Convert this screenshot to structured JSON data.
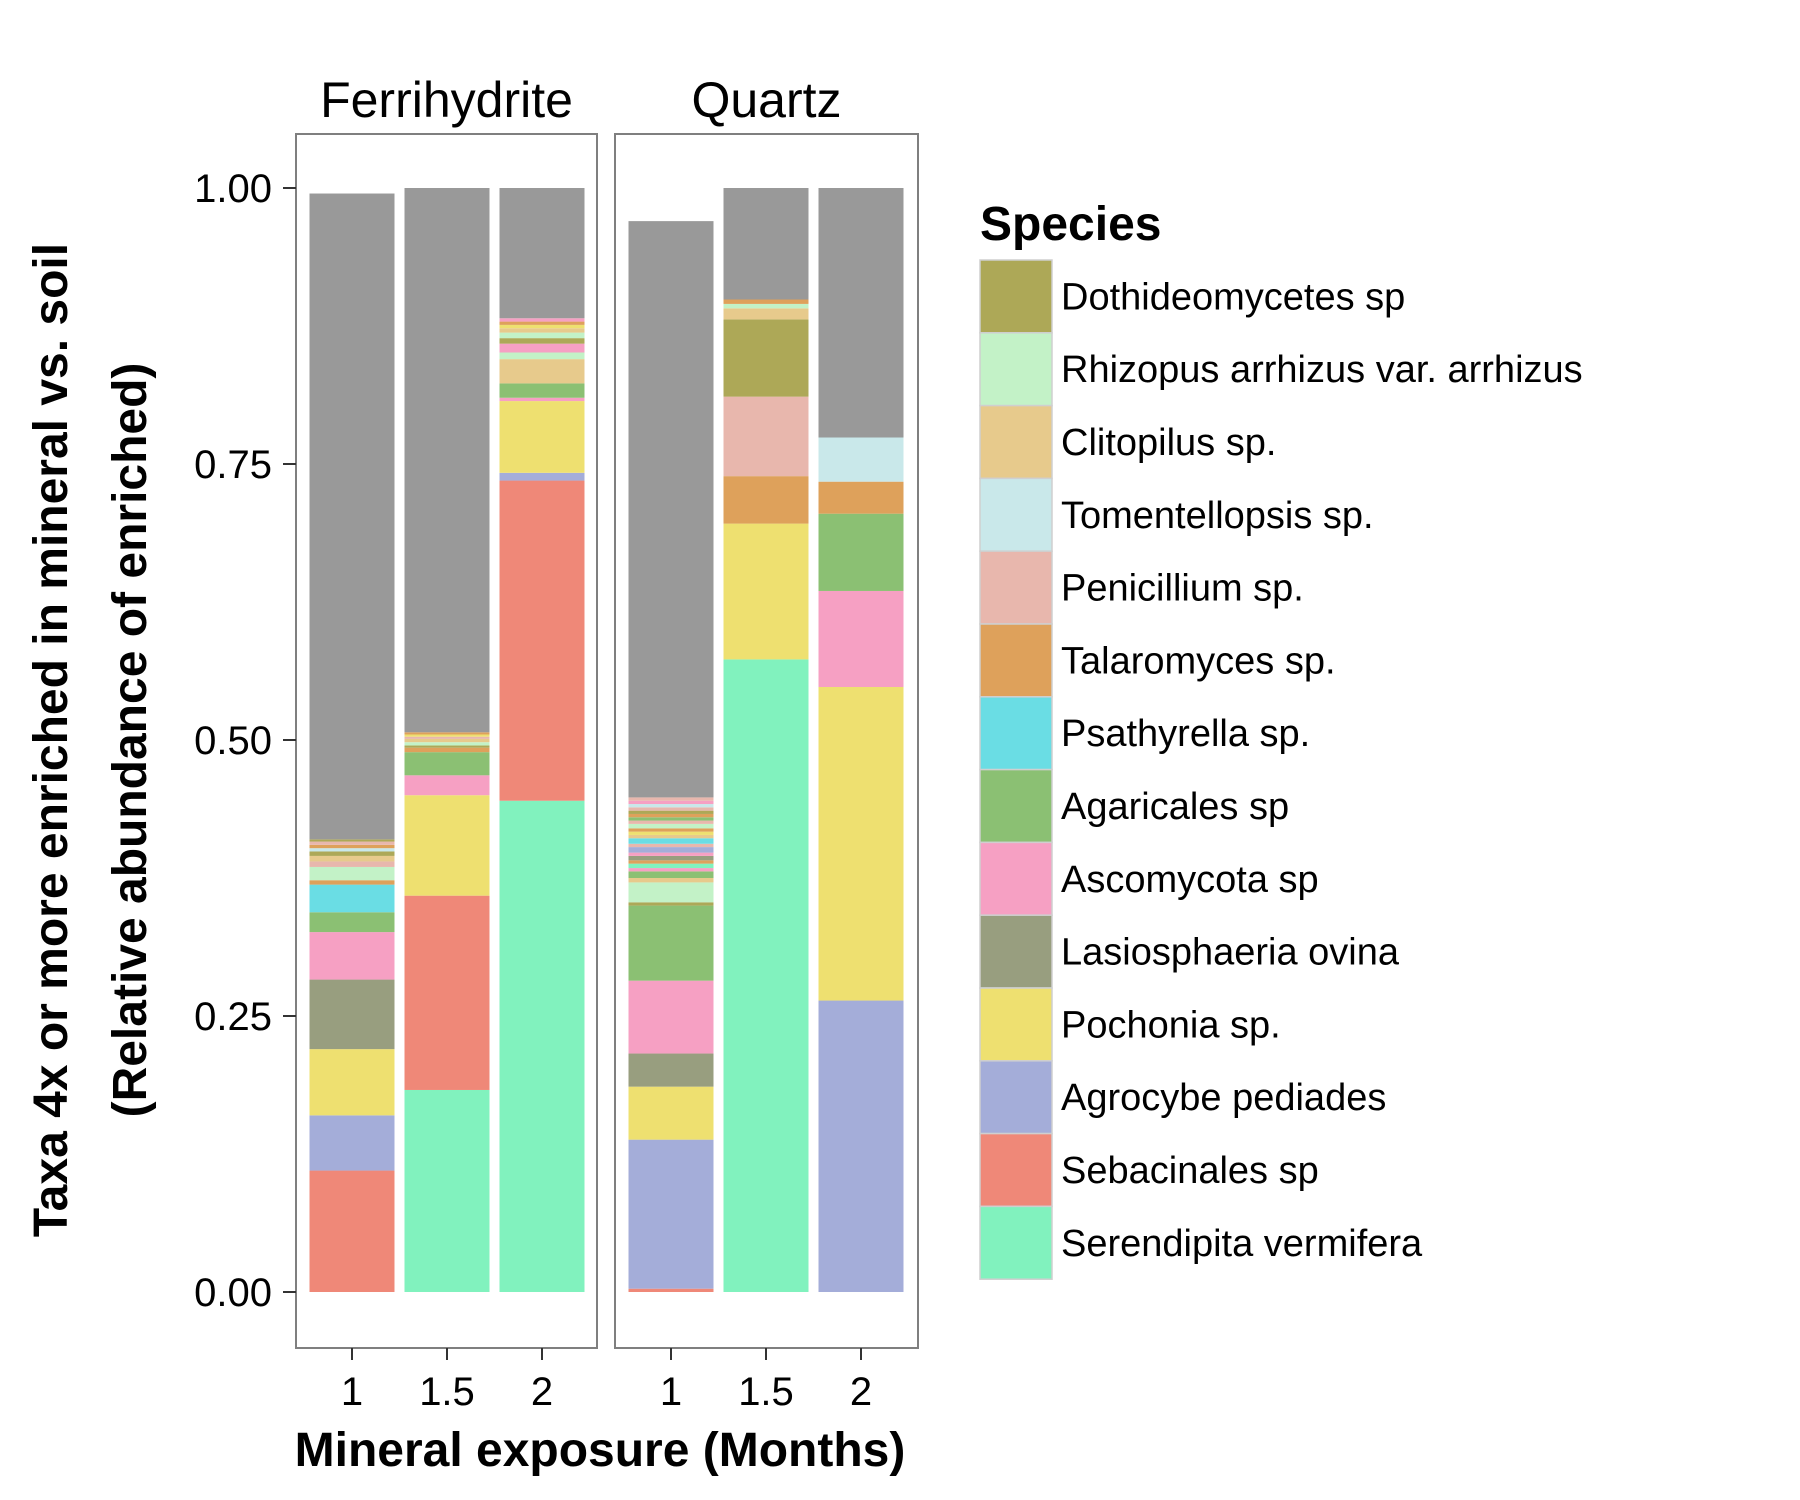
{
  "chart_data": {
    "type": "bar",
    "stacked": true,
    "ylabel_line1": "Taxa 4x or more enriched in mineral vs. soil",
    "ylabel_line2": "(Relative abundance of enriched)",
    "xlabel": "Mineral exposure (Months)",
    "ylim": [
      0,
      1.05
    ],
    "yticks": [
      "0.00",
      "0.25",
      "0.50",
      "0.75",
      "1.00"
    ],
    "ytick_values": [
      0,
      0.25,
      0.5,
      0.75,
      1.0
    ],
    "categories": [
      "1",
      "1.5",
      "2"
    ],
    "legend": {
      "title": "Species",
      "position": "right",
      "items": [
        {
          "name": "Dothideomycetes sp",
          "color": "#ADA857"
        },
        {
          "name": "Rhizopus arrhizus var. arrhizus",
          "color": "#C3F2C7"
        },
        {
          "name": "Clitopilus sp.",
          "color": "#E7CA8C"
        },
        {
          "name": "Tomentellopsis sp.",
          "color": "#C9E8EA"
        },
        {
          "name": "Penicillium sp.",
          "color": "#E8B7AD"
        },
        {
          "name": "Talaromyces sp.",
          "color": "#DEA15B"
        },
        {
          "name": "Psathyrella sp.",
          "color": "#6ADDE4"
        },
        {
          "name": "Agaricales sp",
          "color": "#8BC073"
        },
        {
          "name": "Ascomycota sp",
          "color": "#F6A0C3"
        },
        {
          "name": "Lasiosphaeria ovina",
          "color": "#989E7F"
        },
        {
          "name": "Pochonia sp.",
          "color": "#EEE070"
        },
        {
          "name": "Agrocybe pediades",
          "color": "#A4ADD9"
        },
        {
          "name": "Sebacinales sp",
          "color": "#EF8878"
        },
        {
          "name": "Serendipita vermifera",
          "color": "#81F2BE"
        }
      ]
    },
    "other_color": "#999999",
    "panels": [
      {
        "title": "Ferrihydrite",
        "bars": [
          {
            "x": "1",
            "segments": [
              {
                "species": "Sebacinales sp",
                "value": 0.11
              },
              {
                "species": "Agrocybe pediades",
                "value": 0.05
              },
              {
                "species": "Pochonia sp.",
                "value": 0.06
              },
              {
                "species": "Lasiosphaeria ovina",
                "value": 0.063
              },
              {
                "species": "Ascomycota sp",
                "value": 0.043
              },
              {
                "species": "Agaricales sp",
                "value": 0.018
              },
              {
                "species": "Psathyrella sp.",
                "value": 0.025
              },
              {
                "species": "Talaromyces sp.",
                "value": 0.004
              },
              {
                "species": "Rhizopus arrhizus var. arrhizus",
                "value": 0.012
              },
              {
                "species": "Penicillium sp.",
                "value": 0.005
              },
              {
                "species": "Clitopilus sp.",
                "value": 0.005
              },
              {
                "species": "Dothideomycetes sp",
                "value": 0.004
              },
              {
                "species": "Tomentellopsis sp.",
                "value": 0.003
              },
              {
                "species": "Talaromyces sp.",
                "value": 0.003
              },
              {
                "species": "Penicillium sp.",
                "value": 0.003
              },
              {
                "species": "Dothideomycetes sp",
                "value": 0.002
              },
              {
                "species": "other",
                "value": 0.585
              }
            ]
          },
          {
            "x": "1.5",
            "segments": [
              {
                "species": "Serendipita vermifera",
                "value": 0.183
              },
              {
                "species": "Sebacinales sp",
                "value": 0.176
              },
              {
                "species": "Pochonia sp.",
                "value": 0.091
              },
              {
                "species": "Ascomycota sp",
                "value": 0.018
              },
              {
                "species": "Agaricales sp",
                "value": 0.021
              },
              {
                "species": "Talaromyces sp.",
                "value": 0.004
              },
              {
                "species": "Dothideomycetes sp",
                "value": 0.002
              },
              {
                "species": "Rhizopus arrhizus var. arrhizus",
                "value": 0.003
              },
              {
                "species": "Clitopilus sp.",
                "value": 0.003
              },
              {
                "species": "Penicillium sp.",
                "value": 0.002
              },
              {
                "species": "Pochonia sp.",
                "value": 0.002
              },
              {
                "species": "Talaromyces sp.",
                "value": 0.002
              },
              {
                "species": "other",
                "value": 0.493
              }
            ]
          },
          {
            "x": "2",
            "segments": [
              {
                "species": "Serendipita vermifera",
                "value": 0.445
              },
              {
                "species": "Sebacinales sp",
                "value": 0.29
              },
              {
                "species": "Agrocybe pediades",
                "value": 0.007
              },
              {
                "species": "Pochonia sp.",
                "value": 0.065
              },
              {
                "species": "Ascomycota sp",
                "value": 0.003
              },
              {
                "species": "Agaricales sp",
                "value": 0.013
              },
              {
                "species": "Clitopilus sp.",
                "value": 0.022
              },
              {
                "species": "Rhizopus arrhizus var. arrhizus",
                "value": 0.006
              },
              {
                "species": "Ascomycota sp",
                "value": 0.008
              },
              {
                "species": "Dothideomycetes sp",
                "value": 0.005
              },
              {
                "species": "Rhizopus arrhizus var. arrhizus",
                "value": 0.005
              },
              {
                "species": "Clitopilus sp.",
                "value": 0.004
              },
              {
                "species": "Pochonia sp.",
                "value": 0.003
              },
              {
                "species": "Talaromyces sp.",
                "value": 0.003
              },
              {
                "species": "Ascomycota sp",
                "value": 0.003
              },
              {
                "species": "other",
                "value": 0.118
              }
            ]
          }
        ]
      },
      {
        "title": "Quartz",
        "bars": [
          {
            "x": "1",
            "segments": [
              {
                "species": "Sebacinales sp",
                "value": 0.003
              },
              {
                "species": "Agrocybe pediades",
                "value": 0.135
              },
              {
                "species": "Pochonia sp.",
                "value": 0.048
              },
              {
                "species": "Lasiosphaeria ovina",
                "value": 0.03
              },
              {
                "species": "Ascomycota sp",
                "value": 0.066
              },
              {
                "species": "Agaricales sp",
                "value": 0.068
              },
              {
                "species": "Dothideomycetes sp",
                "value": 0.003
              },
              {
                "species": "Rhizopus arrhizus var. arrhizus",
                "value": 0.018
              },
              {
                "species": "Clitopilus sp.",
                "value": 0.004
              },
              {
                "species": "Agaricales sp",
                "value": 0.006
              },
              {
                "species": "Ascomycota sp",
                "value": 0.003
              },
              {
                "species": "Serendipita vermifera",
                "value": 0.004
              },
              {
                "species": "Talaromyces sp.",
                "value": 0.003
              },
              {
                "species": "Lasiosphaeria ovina",
                "value": 0.004
              },
              {
                "species": "Ascomycota sp",
                "value": 0.003
              },
              {
                "species": "Agrocybe pediades",
                "value": 0.005
              },
              {
                "species": "Penicillium sp.",
                "value": 0.003
              },
              {
                "species": "Psathyrella sp.",
                "value": 0.005
              },
              {
                "species": "Clitopilus sp.",
                "value": 0.003
              },
              {
                "species": "Pochonia sp.",
                "value": 0.003
              },
              {
                "species": "Talaromyces sp.",
                "value": 0.003
              },
              {
                "species": "Rhizopus arrhizus var. arrhizus",
                "value": 0.004
              },
              {
                "species": "Penicillium sp.",
                "value": 0.003
              },
              {
                "species": "Agaricales sp",
                "value": 0.003
              },
              {
                "species": "Talaromyces sp.",
                "value": 0.003
              },
              {
                "species": "Dothideomycetes sp",
                "value": 0.003
              },
              {
                "species": "Penicillium sp.",
                "value": 0.003
              },
              {
                "species": "Tomentellopsis sp.",
                "value": 0.003
              },
              {
                "species": "Ascomycota sp",
                "value": 0.003
              },
              {
                "species": "Penicillium sp.",
                "value": 0.003
              },
              {
                "species": "other",
                "value": 0.522
              }
            ]
          },
          {
            "x": "1.5",
            "segments": [
              {
                "species": "Serendipita vermifera",
                "value": 0.573
              },
              {
                "species": "Pochonia sp.",
                "value": 0.123
              },
              {
                "species": "Talaromyces sp.",
                "value": 0.043
              },
              {
                "species": "Penicillium sp.",
                "value": 0.072
              },
              {
                "species": "Dothideomycetes sp",
                "value": 0.07
              },
              {
                "species": "Clitopilus sp.",
                "value": 0.01
              },
              {
                "species": "Rhizopus arrhizus var. arrhizus",
                "value": 0.004
              },
              {
                "species": "Talaromyces sp.",
                "value": 0.004
              },
              {
                "species": "other",
                "value": 0.101
              }
            ]
          },
          {
            "x": "2",
            "segments": [
              {
                "species": "Agrocybe pediades",
                "value": 0.264
              },
              {
                "species": "Pochonia sp.",
                "value": 0.284
              },
              {
                "species": "Ascomycota sp",
                "value": 0.087
              },
              {
                "species": "Agaricales sp",
                "value": 0.07
              },
              {
                "species": "Talaromyces sp.",
                "value": 0.029
              },
              {
                "species": "Tomentellopsis sp.",
                "value": 0.04
              },
              {
                "species": "other",
                "value": 0.226
              }
            ]
          }
        ]
      }
    ]
  }
}
